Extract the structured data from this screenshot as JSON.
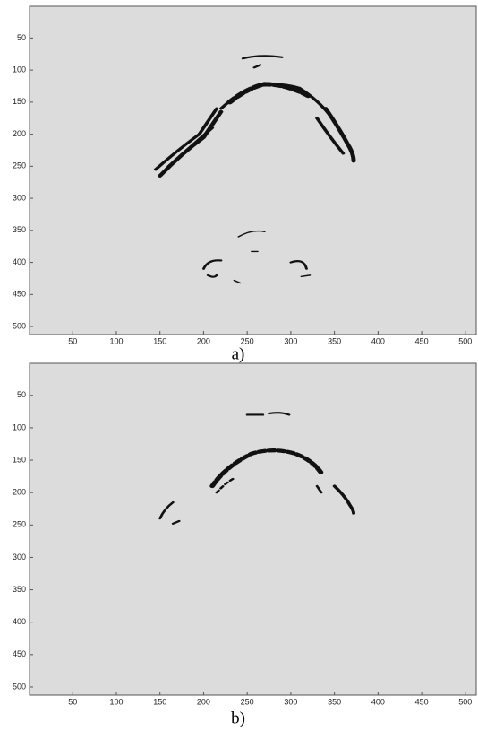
{
  "panels": [
    {
      "caption": "a)",
      "xlim": [
        0.5,
        512.5
      ],
      "ylim": [
        0.5,
        512.5
      ],
      "xticks": [
        50,
        100,
        150,
        200,
        250,
        300,
        350,
        400,
        450,
        500
      ],
      "yticks": [
        50,
        100,
        150,
        200,
        250,
        300,
        350,
        400,
        450,
        500
      ]
    },
    {
      "caption": "b)",
      "xlim": [
        0.5,
        512.5
      ],
      "ylim": [
        0.5,
        512.5
      ],
      "xticks": [
        50,
        100,
        150,
        200,
        250,
        300,
        350,
        400,
        450,
        500
      ],
      "yticks": [
        50,
        100,
        150,
        200,
        250,
        300,
        350,
        400,
        450,
        500
      ]
    }
  ]
}
